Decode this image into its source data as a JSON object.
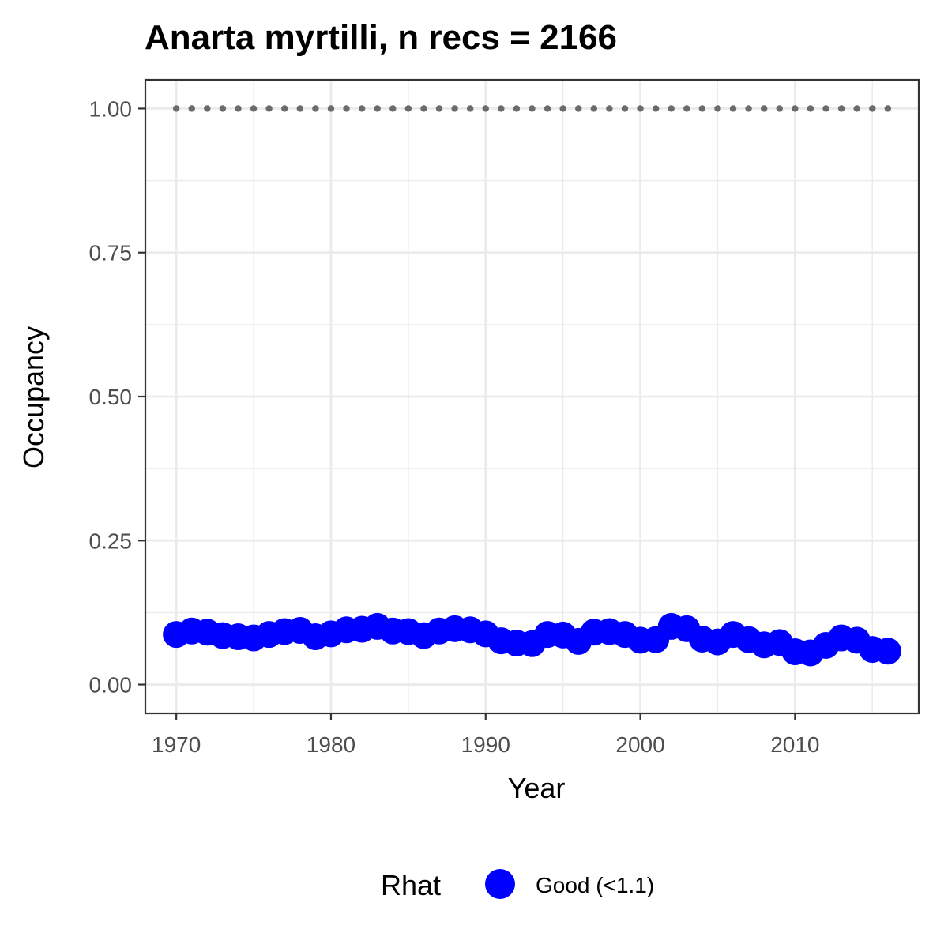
{
  "chart_data": {
    "type": "scatter",
    "title": "Anarta myrtilli, n recs = 2166",
    "xlabel": "Year",
    "ylabel": "Occupancy",
    "xlim": [
      1968,
      2018
    ],
    "ylim": [
      -0.05,
      1.05
    ],
    "x_ticks": [
      1970,
      1980,
      1990,
      2000,
      2010
    ],
    "y_ticks": [
      0.0,
      0.25,
      0.5,
      0.75,
      1.0
    ],
    "x_tick_labels": [
      "1970",
      "1980",
      "1990",
      "2000",
      "2010"
    ],
    "y_tick_labels": [
      "0.00",
      "0.25",
      "0.50",
      "0.75",
      "1.00"
    ],
    "grid": true,
    "series": [
      {
        "name": "Occupancy",
        "x": [
          1970,
          1971,
          1972,
          1973,
          1974,
          1975,
          1976,
          1977,
          1978,
          1979,
          1980,
          1981,
          1982,
          1983,
          1984,
          1985,
          1986,
          1987,
          1988,
          1989,
          1990,
          1991,
          1992,
          1993,
          1994,
          1995,
          1996,
          1997,
          1998,
          1999,
          2000,
          2001,
          2002,
          2003,
          2004,
          2005,
          2006,
          2007,
          2008,
          2009,
          2010,
          2011,
          2012,
          2013,
          2014,
          2015,
          2016
        ],
        "values": [
          0.087,
          0.093,
          0.091,
          0.085,
          0.083,
          0.081,
          0.087,
          0.092,
          0.094,
          0.083,
          0.088,
          0.095,
          0.096,
          0.101,
          0.093,
          0.092,
          0.085,
          0.093,
          0.097,
          0.095,
          0.088,
          0.076,
          0.072,
          0.071,
          0.087,
          0.086,
          0.075,
          0.091,
          0.092,
          0.087,
          0.077,
          0.078,
          0.101,
          0.097,
          0.079,
          0.074,
          0.087,
          0.078,
          0.069,
          0.073,
          0.057,
          0.055,
          0.068,
          0.081,
          0.077,
          0.061,
          0.058
        ],
        "color": "#0000ff",
        "label": "Good (<1.1)"
      },
      {
        "name": "Reference",
        "x": [
          1970,
          1971,
          1972,
          1973,
          1974,
          1975,
          1976,
          1977,
          1978,
          1979,
          1980,
          1981,
          1982,
          1983,
          1984,
          1985,
          1986,
          1987,
          1988,
          1989,
          1990,
          1991,
          1992,
          1993,
          1994,
          1995,
          1996,
          1997,
          1998,
          1999,
          2000,
          2001,
          2002,
          2003,
          2004,
          2005,
          2006,
          2007,
          2008,
          2009,
          2010,
          2011,
          2012,
          2013,
          2014,
          2015,
          2016
        ],
        "values": [
          1,
          1,
          1,
          1,
          1,
          1,
          1,
          1,
          1,
          1,
          1,
          1,
          1,
          1,
          1,
          1,
          1,
          1,
          1,
          1,
          1,
          1,
          1,
          1,
          1,
          1,
          1,
          1,
          1,
          1,
          1,
          1,
          1,
          1,
          1,
          1,
          1,
          1,
          1,
          1,
          1,
          1,
          1,
          1,
          1,
          1,
          1
        ],
        "color": "#6b6b6b",
        "label": ""
      }
    ],
    "legend": {
      "title": "Rhat",
      "position": "bottom",
      "entries": [
        {
          "label": "Good (<1.1)",
          "color": "#0000ff"
        }
      ]
    }
  }
}
